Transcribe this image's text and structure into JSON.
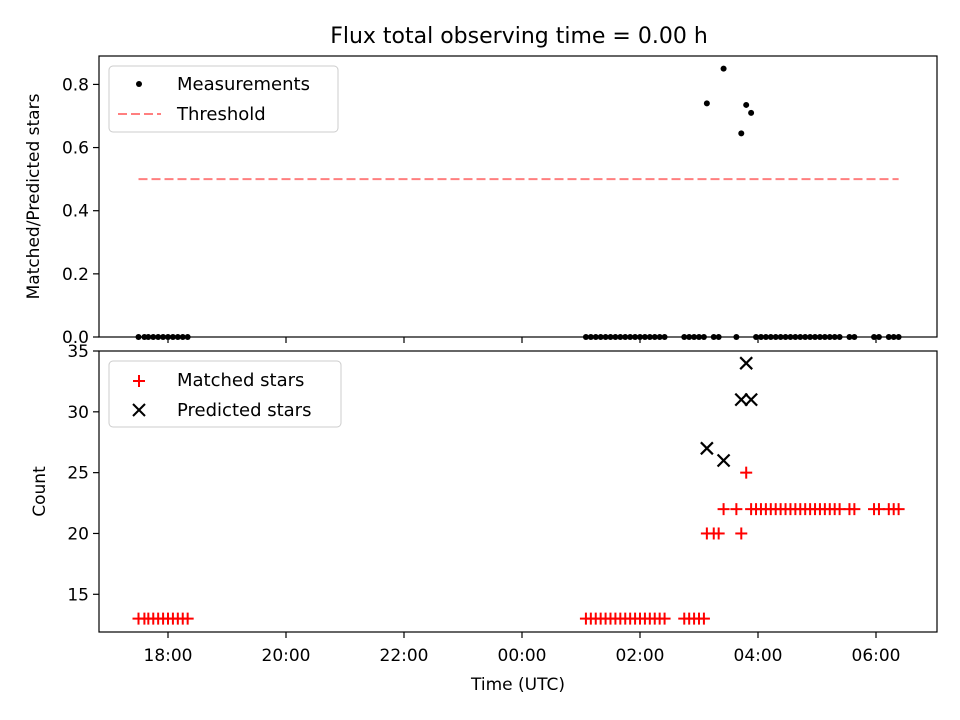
{
  "title": "Flux total observing time = 0.00 h",
  "colors": {
    "measurements": "#000000",
    "threshold": "#ff7f7f",
    "matched": "#ff0000",
    "predicted": "#000000"
  },
  "chart_data": [
    {
      "type": "scatter",
      "panel": "top",
      "title": "Flux total observing time = 0.00 h",
      "xlabel": "",
      "ylabel": "Matched/Predicted stars",
      "xlim": [
        "17:12",
        "07:00"
      ],
      "ylim": [
        0,
        0.89
      ],
      "yticks": [
        "0.0",
        "0.2",
        "0.4",
        "0.6",
        "0.8"
      ],
      "legend_position": "top-left",
      "grid": false,
      "series": [
        {
          "name": "Measurements",
          "marker": "dot",
          "color": "#000000",
          "points": [
            {
              "x": "17:30",
              "y": 0
            },
            {
              "x": "17:36",
              "y": 0
            },
            {
              "x": "17:40",
              "y": 0
            },
            {
              "x": "17:45",
              "y": 0
            },
            {
              "x": "17:50",
              "y": 0
            },
            {
              "x": "17:55",
              "y": 0
            },
            {
              "x": "18:00",
              "y": 0
            },
            {
              "x": "18:05",
              "y": 0
            },
            {
              "x": "18:10",
              "y": 0
            },
            {
              "x": "18:15",
              "y": 0
            },
            {
              "x": "18:20",
              "y": 0
            },
            {
              "x": "01:05",
              "y": 0
            },
            {
              "x": "01:10",
              "y": 0
            },
            {
              "x": "01:15",
              "y": 0
            },
            {
              "x": "01:20",
              "y": 0
            },
            {
              "x": "01:25",
              "y": 0
            },
            {
              "x": "01:30",
              "y": 0
            },
            {
              "x": "01:35",
              "y": 0
            },
            {
              "x": "01:40",
              "y": 0
            },
            {
              "x": "01:45",
              "y": 0
            },
            {
              "x": "01:50",
              "y": 0
            },
            {
              "x": "01:55",
              "y": 0
            },
            {
              "x": "02:00",
              "y": 0
            },
            {
              "x": "02:05",
              "y": 0
            },
            {
              "x": "02:10",
              "y": 0
            },
            {
              "x": "02:15",
              "y": 0
            },
            {
              "x": "02:20",
              "y": 0
            },
            {
              "x": "02:25",
              "y": 0
            },
            {
              "x": "02:45",
              "y": 0
            },
            {
              "x": "02:50",
              "y": 0
            },
            {
              "x": "02:55",
              "y": 0
            },
            {
              "x": "03:00",
              "y": 0
            },
            {
              "x": "03:05",
              "y": 0
            },
            {
              "x": "03:08",
              "y": 0.74
            },
            {
              "x": "03:15",
              "y": 0
            },
            {
              "x": "03:20",
              "y": 0
            },
            {
              "x": "03:25",
              "y": 0.85
            },
            {
              "x": "03:38",
              "y": 0
            },
            {
              "x": "03:43",
              "y": 0.645
            },
            {
              "x": "03:48",
              "y": 0.735
            },
            {
              "x": "03:53",
              "y": 0.71
            },
            {
              "x": "03:58",
              "y": 0
            },
            {
              "x": "04:03",
              "y": 0
            },
            {
              "x": "04:08",
              "y": 0
            },
            {
              "x": "04:13",
              "y": 0
            },
            {
              "x": "04:18",
              "y": 0
            },
            {
              "x": "04:23",
              "y": 0
            },
            {
              "x": "04:28",
              "y": 0
            },
            {
              "x": "04:33",
              "y": 0
            },
            {
              "x": "04:38",
              "y": 0
            },
            {
              "x": "04:43",
              "y": 0
            },
            {
              "x": "04:48",
              "y": 0
            },
            {
              "x": "04:53",
              "y": 0
            },
            {
              "x": "04:58",
              "y": 0
            },
            {
              "x": "05:03",
              "y": 0
            },
            {
              "x": "05:08",
              "y": 0
            },
            {
              "x": "05:13",
              "y": 0
            },
            {
              "x": "05:18",
              "y": 0
            },
            {
              "x": "05:23",
              "y": 0
            },
            {
              "x": "05:33",
              "y": 0
            },
            {
              "x": "05:38",
              "y": 0
            },
            {
              "x": "05:58",
              "y": 0
            },
            {
              "x": "06:03",
              "y": 0
            },
            {
              "x": "06:13",
              "y": 0
            },
            {
              "x": "06:18",
              "y": 0
            },
            {
              "x": "06:23",
              "y": 0
            }
          ]
        },
        {
          "name": "Threshold",
          "style": "dashed-line",
          "color": "#ff7f7f",
          "points": [
            {
              "x": "17:30",
              "y": 0.5
            },
            {
              "x": "06:23",
              "y": 0.5
            }
          ]
        }
      ]
    },
    {
      "type": "scatter",
      "panel": "bottom",
      "xlabel": "Time (UTC)",
      "ylabel": "Count",
      "xlim": [
        "17:12",
        "07:00"
      ],
      "ylim": [
        11.9,
        35
      ],
      "yticks": [
        "15",
        "20",
        "25",
        "30",
        "35"
      ],
      "xticks": [
        "18:00",
        "20:00",
        "22:00",
        "00:00",
        "02:00",
        "04:00",
        "06:00"
      ],
      "legend_position": "top-left",
      "grid": false,
      "series": [
        {
          "name": "Matched stars",
          "marker": "plus",
          "color": "#ff0000",
          "points": [
            {
              "x": "17:30",
              "y": 13
            },
            {
              "x": "17:36",
              "y": 13
            },
            {
              "x": "17:40",
              "y": 13
            },
            {
              "x": "17:45",
              "y": 13
            },
            {
              "x": "17:50",
              "y": 13
            },
            {
              "x": "17:55",
              "y": 13
            },
            {
              "x": "18:00",
              "y": 13
            },
            {
              "x": "18:05",
              "y": 13
            },
            {
              "x": "18:10",
              "y": 13
            },
            {
              "x": "18:15",
              "y": 13
            },
            {
              "x": "18:20",
              "y": 13
            },
            {
              "x": "01:05",
              "y": 13
            },
            {
              "x": "01:10",
              "y": 13
            },
            {
              "x": "01:15",
              "y": 13
            },
            {
              "x": "01:20",
              "y": 13
            },
            {
              "x": "01:25",
              "y": 13
            },
            {
              "x": "01:30",
              "y": 13
            },
            {
              "x": "01:35",
              "y": 13
            },
            {
              "x": "01:40",
              "y": 13
            },
            {
              "x": "01:45",
              "y": 13
            },
            {
              "x": "01:50",
              "y": 13
            },
            {
              "x": "01:55",
              "y": 13
            },
            {
              "x": "02:00",
              "y": 13
            },
            {
              "x": "02:05",
              "y": 13
            },
            {
              "x": "02:10",
              "y": 13
            },
            {
              "x": "02:15",
              "y": 13
            },
            {
              "x": "02:20",
              "y": 13
            },
            {
              "x": "02:25",
              "y": 13
            },
            {
              "x": "02:45",
              "y": 13
            },
            {
              "x": "02:50",
              "y": 13
            },
            {
              "x": "02:55",
              "y": 13
            },
            {
              "x": "03:00",
              "y": 13
            },
            {
              "x": "03:05",
              "y": 13
            },
            {
              "x": "03:08",
              "y": 20
            },
            {
              "x": "03:15",
              "y": 20
            },
            {
              "x": "03:20",
              "y": 20
            },
            {
              "x": "03:25",
              "y": 22
            },
            {
              "x": "03:38",
              "y": 22
            },
            {
              "x": "03:43",
              "y": 20
            },
            {
              "x": "03:48",
              "y": 25
            },
            {
              "x": "03:53",
              "y": 22
            },
            {
              "x": "03:58",
              "y": 22
            },
            {
              "x": "04:03",
              "y": 22
            },
            {
              "x": "04:08",
              "y": 22
            },
            {
              "x": "04:13",
              "y": 22
            },
            {
              "x": "04:18",
              "y": 22
            },
            {
              "x": "04:23",
              "y": 22
            },
            {
              "x": "04:28",
              "y": 22
            },
            {
              "x": "04:33",
              "y": 22
            },
            {
              "x": "04:38",
              "y": 22
            },
            {
              "x": "04:43",
              "y": 22
            },
            {
              "x": "04:48",
              "y": 22
            },
            {
              "x": "04:53",
              "y": 22
            },
            {
              "x": "04:58",
              "y": 22
            },
            {
              "x": "05:03",
              "y": 22
            },
            {
              "x": "05:08",
              "y": 22
            },
            {
              "x": "05:13",
              "y": 22
            },
            {
              "x": "05:18",
              "y": 22
            },
            {
              "x": "05:23",
              "y": 22
            },
            {
              "x": "05:33",
              "y": 22
            },
            {
              "x": "05:38",
              "y": 22
            },
            {
              "x": "05:58",
              "y": 22
            },
            {
              "x": "06:03",
              "y": 22
            },
            {
              "x": "06:13",
              "y": 22
            },
            {
              "x": "06:18",
              "y": 22
            },
            {
              "x": "06:23",
              "y": 22
            }
          ]
        },
        {
          "name": "Predicted stars",
          "marker": "x",
          "color": "#000000",
          "points": [
            {
              "x": "03:08",
              "y": 27
            },
            {
              "x": "03:25",
              "y": 26
            },
            {
              "x": "03:43",
              "y": 31
            },
            {
              "x": "03:48",
              "y": 34
            },
            {
              "x": "03:53",
              "y": 31
            }
          ]
        }
      ]
    }
  ]
}
